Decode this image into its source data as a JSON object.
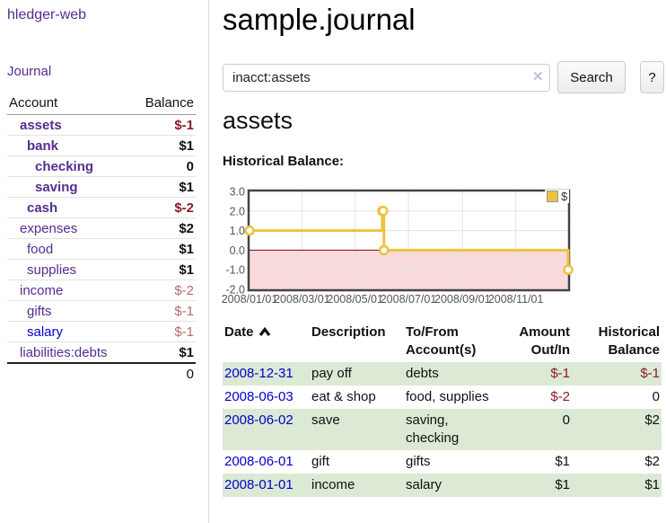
{
  "app": {
    "title": "hledger-web"
  },
  "colors": {
    "link_purple": "#552d90",
    "link_blue": "#0000cc",
    "negative_strong": "#8f192c",
    "negative_soft": "#b56a70",
    "row_green": "#dbe9d5",
    "series_yellow": "#edc240"
  },
  "sidebar": {
    "journal_link": "Journal",
    "headers": {
      "account": "Account",
      "balance": "Balance"
    },
    "accounts": [
      {
        "name": "assets",
        "depth": 0,
        "balance": "$-1"
      },
      {
        "name": "bank",
        "depth": 1,
        "balance": "$1"
      },
      {
        "name": "checking",
        "depth": 2,
        "balance": "0"
      },
      {
        "name": "saving",
        "depth": 2,
        "balance": "$1"
      },
      {
        "name": "cash",
        "depth": 1,
        "balance": "$-2"
      },
      {
        "name": "expenses",
        "depth": 0,
        "balance": "$2"
      },
      {
        "name": "food",
        "depth": 1,
        "balance": "$1"
      },
      {
        "name": "supplies",
        "depth": 1,
        "balance": "$1"
      },
      {
        "name": "income",
        "depth": 0,
        "balance": "$-2"
      },
      {
        "name": "gifts",
        "depth": 1,
        "balance": "$-1"
      },
      {
        "name": "salary",
        "depth": 1,
        "balance": "$-1"
      },
      {
        "name": "liabilities:debts",
        "depth": 0,
        "balance": "$1"
      }
    ],
    "total": "0"
  },
  "main": {
    "title": "sample.journal",
    "search": {
      "value": "inacct:assets",
      "clear_icon": "✕",
      "button": "Search",
      "help_button": "?"
    },
    "account_heading": "assets",
    "chart_label": "Historical Balance:"
  },
  "chart_data": {
    "type": "line",
    "step": true,
    "title": "Historical Balance:",
    "series": [
      {
        "name": "$",
        "color": "#edc240",
        "points": [
          [
            "2008-01-01",
            1
          ],
          [
            "2008-06-01",
            2
          ],
          [
            "2008-06-02",
            2
          ],
          [
            "2008-06-03",
            0
          ],
          [
            "2008-12-31",
            -1
          ]
        ]
      }
    ],
    "x_ticks": [
      "2008/01/01",
      "2008/03/01",
      "2008/05/01",
      "2008/07/01",
      "2008/09/01",
      "2008/11/01"
    ],
    "y_ticks": [
      3.0,
      2.0,
      1.0,
      0.0,
      -1.0,
      -2.0
    ],
    "xlim": [
      "2008-01-01",
      "2008-12-31"
    ],
    "ylim": [
      -2,
      3
    ],
    "legend_position": "top-right",
    "grid": true,
    "negative_region_shaded": true,
    "zero_line_color": "#8b0000",
    "negative_region_color": "#f9dada"
  },
  "register": {
    "headers": {
      "date": "Date",
      "description": "Description",
      "accounts": "To/From Account(s)",
      "amount": "Amount Out/In",
      "balance": "Historical Balance"
    },
    "rows": [
      {
        "date": "2008-12-31",
        "description": "pay off",
        "accounts": "debts",
        "amount": "$-1",
        "balance": "$-1"
      },
      {
        "date": "2008-06-03",
        "description": "eat & shop",
        "accounts": "food, supplies",
        "amount": "$-2",
        "balance": "0"
      },
      {
        "date": "2008-06-02",
        "description": "save",
        "accounts": "saving, checking",
        "amount": "0",
        "balance": "$2"
      },
      {
        "date": "2008-06-01",
        "description": "gift",
        "accounts": "gifts",
        "amount": "$1",
        "balance": "$2"
      },
      {
        "date": "2008-01-01",
        "description": "income",
        "accounts": "salary",
        "amount": "$1",
        "balance": "$1"
      }
    ]
  }
}
